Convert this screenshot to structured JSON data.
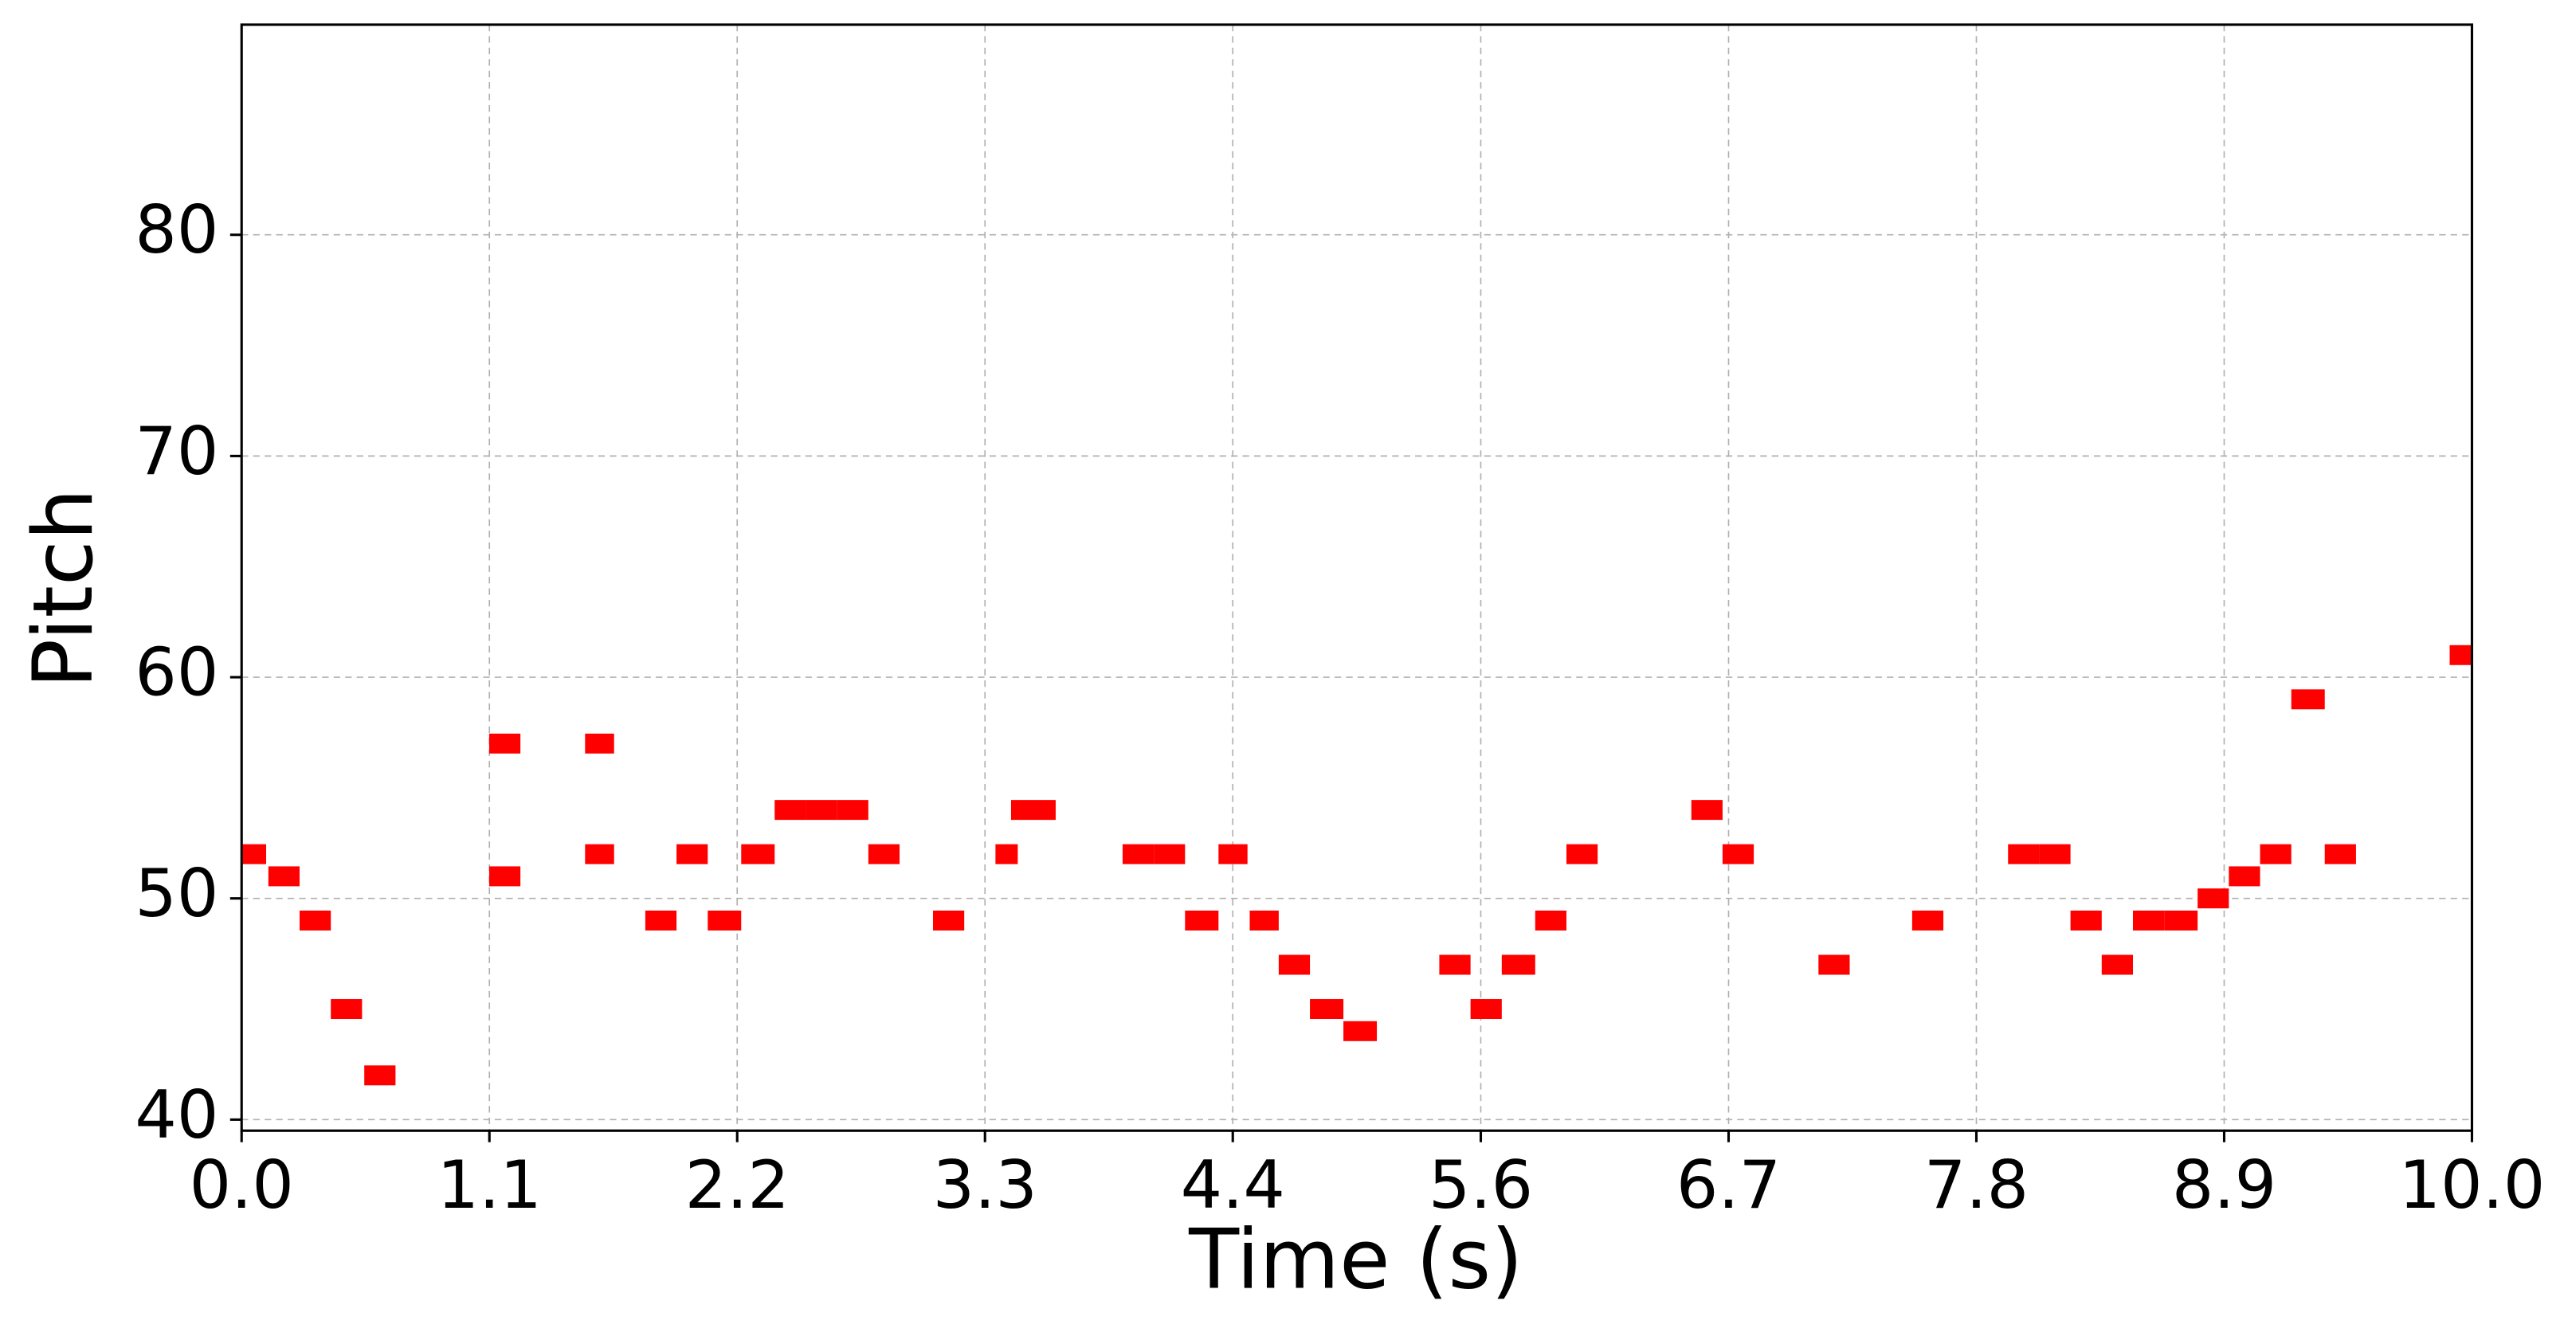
{
  "chart_data": {
    "type": "pianoroll",
    "x_label": "Time (s)",
    "y_label": "Pitch",
    "color": "#ff0000",
    "grid": true,
    "xlim": [
      0,
      10
    ],
    "ylim": [
      39.5,
      89.5
    ],
    "xticks": [
      {
        "value": 0,
        "label": "0.0"
      },
      {
        "value": 1.111,
        "label": "1.1"
      },
      {
        "value": 2.222,
        "label": "2.2"
      },
      {
        "value": 3.333,
        "label": "3.3"
      },
      {
        "value": 4.444,
        "label": "4.4"
      },
      {
        "value": 5.556,
        "label": "5.6"
      },
      {
        "value": 6.667,
        "label": "6.7"
      },
      {
        "value": 7.778,
        "label": "7.8"
      },
      {
        "value": 8.889,
        "label": "8.9"
      },
      {
        "value": 10,
        "label": "10.0"
      }
    ],
    "yticks": [
      40,
      50,
      60,
      70,
      80
    ],
    "notes": {
      "start": [
        0.0,
        0.12,
        0.26,
        0.4,
        0.55,
        1.11,
        1.11,
        1.54,
        1.54,
        1.81,
        1.95,
        2.09,
        2.24,
        2.39,
        2.53,
        2.67,
        2.81,
        3.1,
        3.38,
        3.45,
        3.95,
        4.09,
        4.23,
        4.38,
        4.52,
        4.65,
        4.79,
        4.94,
        5.37,
        5.51,
        5.65,
        5.8,
        5.94,
        6.5,
        6.64,
        7.07,
        7.49,
        7.92,
        8.06,
        8.2,
        8.34,
        8.48,
        8.62,
        8.77,
        8.91,
        9.05,
        9.19,
        9.34,
        9.9
      ],
      "end": [
        0.11,
        0.26,
        0.4,
        0.54,
        0.69,
        1.25,
        1.25,
        1.67,
        1.67,
        1.95,
        2.09,
        2.24,
        2.39,
        2.53,
        2.67,
        2.81,
        2.95,
        3.24,
        3.48,
        3.65,
        4.09,
        4.23,
        4.38,
        4.51,
        4.65,
        4.79,
        4.94,
        5.09,
        5.51,
        5.65,
        5.8,
        5.94,
        6.08,
        6.64,
        6.78,
        7.21,
        7.63,
        8.06,
        8.2,
        8.34,
        8.48,
        8.62,
        8.77,
        8.91,
        9.05,
        9.19,
        9.34,
        9.48,
        10.04
      ],
      "pitch": [
        52,
        51,
        49,
        45,
        42,
        57,
        51,
        57,
        52,
        49,
        52,
        49,
        52,
        54,
        54,
        54,
        52,
        49,
        52,
        54,
        52,
        52,
        49,
        52,
        49,
        47,
        45,
        44,
        47,
        45,
        47,
        49,
        52,
        54,
        52,
        47,
        49,
        52,
        52,
        49,
        47,
        49,
        49,
        50,
        51,
        52,
        59,
        52,
        61
      ]
    }
  }
}
